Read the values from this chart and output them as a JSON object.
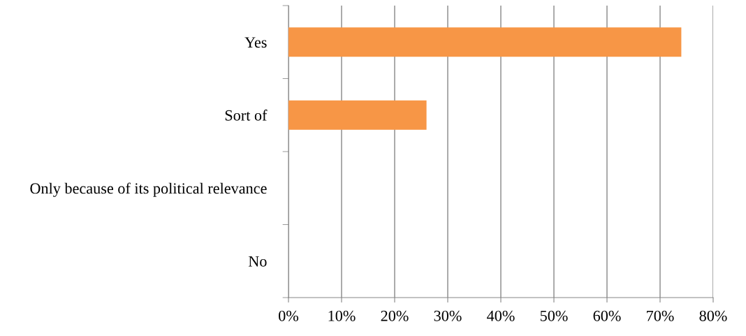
{
  "chart_data": {
    "type": "bar",
    "orientation": "horizontal",
    "categories": [
      "Yes",
      "Sort of",
      "Only because of its political relevance",
      "No"
    ],
    "values": [
      74,
      26,
      0,
      0
    ],
    "color": "#f79646",
    "xlim": [
      0,
      80
    ],
    "xticks": [
      {
        "value": 0,
        "label": "0%"
      },
      {
        "value": 10,
        "label": "10%"
      },
      {
        "value": 20,
        "label": "20%"
      },
      {
        "value": 30,
        "label": "30%"
      },
      {
        "value": 40,
        "label": "40%"
      },
      {
        "value": 50,
        "label": "50%"
      },
      {
        "value": 60,
        "label": "60%"
      },
      {
        "value": 70,
        "label": "70%"
      },
      {
        "value": 80,
        "label": "80%"
      }
    ],
    "grid": "x",
    "legend": false
  }
}
